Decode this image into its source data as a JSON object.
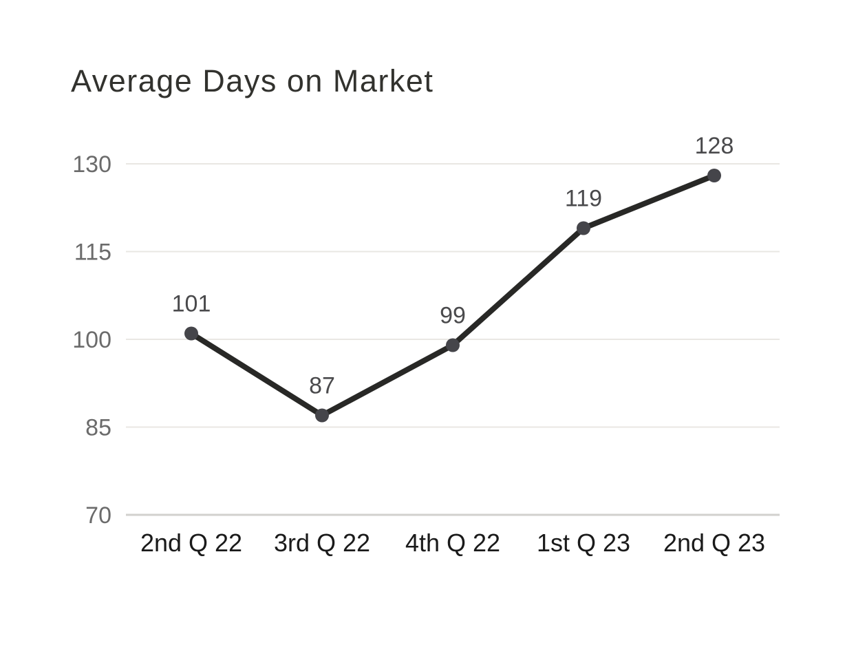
{
  "page": {
    "background": "#ffffff"
  },
  "chart_data": {
    "type": "line",
    "title": "Average Days on Market",
    "categories": [
      "2nd Q 22",
      "3rd Q 22",
      "4th Q 22",
      "1st Q 23",
      "2nd Q 23"
    ],
    "values": [
      101,
      87,
      99,
      119,
      128
    ],
    "value_labels": [
      "101",
      "87",
      "99",
      "119",
      "128"
    ],
    "yticks": [
      70,
      85,
      100,
      115,
      130
    ],
    "ytick_labels": [
      "70",
      "85",
      "100",
      "115",
      "130"
    ],
    "ylim": [
      70,
      130
    ],
    "xlabel": "",
    "ylabel": "",
    "grid": true,
    "legend": false,
    "colors": {
      "line": "#282826",
      "marker": "#45454a",
      "gridline": "#e9e7e3",
      "baseline": "#d2d1ce",
      "title_text": "#32322e",
      "ytick_text": "#6b6b6b",
      "xtick_text": "#1a1a1a",
      "value_label_text": "#4a4a4c",
      "background": "#ffffff"
    }
  }
}
